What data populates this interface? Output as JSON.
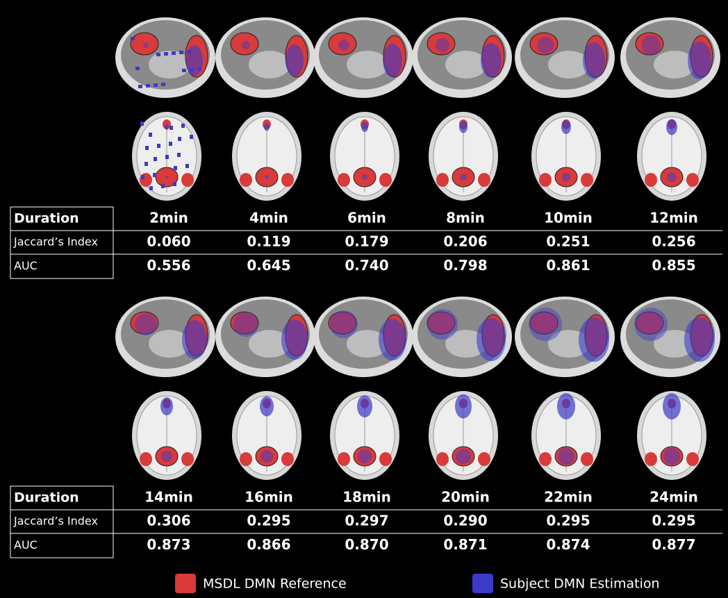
{
  "panels": [
    {
      "rows": [
        {
          "label": "Duration",
          "cells": [
            "2min",
            "4min",
            "6min",
            "8min",
            "10min",
            "12min"
          ]
        },
        {
          "label": "Jaccard’s Index",
          "cells": [
            "0.060",
            "0.119",
            "0.179",
            "0.206",
            "0.251",
            "0.256"
          ]
        },
        {
          "label": "AUC",
          "cells": [
            "0.556",
            "0.645",
            "0.740",
            "0.798",
            "0.861",
            "0.855"
          ]
        }
      ]
    },
    {
      "rows": [
        {
          "label": "Duration",
          "cells": [
            "14min",
            "16min",
            "18min",
            "20min",
            "22min",
            "24min"
          ]
        },
        {
          "label": "Jaccard’s Index",
          "cells": [
            "0.306",
            "0.295",
            "0.297",
            "0.290",
            "0.295",
            "0.295"
          ]
        },
        {
          "label": "AUC",
          "cells": [
            "0.873",
            "0.866",
            "0.870",
            "0.871",
            "0.874",
            "0.877"
          ]
        }
      ]
    }
  ],
  "legend": [
    {
      "label": "MSDL DMN Reference",
      "color": "#d93a3a"
    },
    {
      "label": "Subject DMN Estimation",
      "color": "#3b3bc8"
    }
  ]
}
